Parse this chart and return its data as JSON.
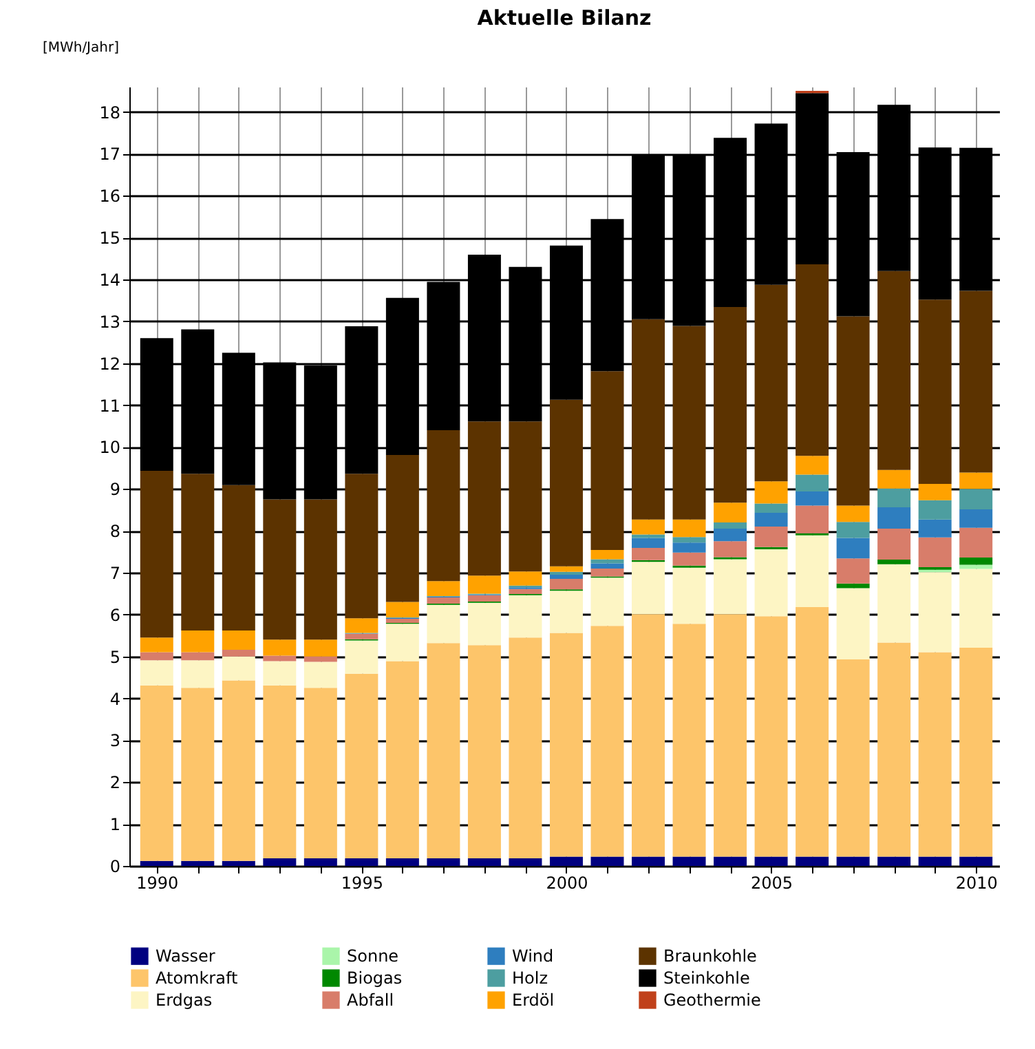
{
  "chart_data": {
    "type": "bar",
    "title": "Aktuelle Bilanz",
    "ylabel": "[MWh/Jahr]",
    "stacked": true,
    "grid": true,
    "legend": "bottom",
    "x": [
      1990,
      1991,
      1992,
      1993,
      1994,
      1995,
      1996,
      1997,
      1998,
      1999,
      2000,
      2001,
      2002,
      2003,
      2004,
      2005,
      2006,
      2007,
      2008,
      2009,
      2010
    ],
    "xlim": [
      1989.5,
      2010.4
    ],
    "xticks": [
      1990,
      {
        "value": 1991,
        "label": null
      },
      {
        "value": 1992,
        "label": null
      },
      {
        "value": 1993,
        "label": null
      },
      {
        "value": 1994,
        "label": null
      },
      1995,
      {
        "value": 1996,
        "label": null
      },
      {
        "value": 1997,
        "label": null
      },
      {
        "value": 1998,
        "label": null
      },
      {
        "value": 1999,
        "label": null
      },
      2000,
      {
        "value": 2001,
        "label": null
      },
      {
        "value": 2002,
        "label": null
      },
      {
        "value": 2003,
        "label": null
      },
      {
        "value": 2004,
        "label": null
      },
      2005,
      {
        "value": 2006,
        "label": null
      },
      {
        "value": 2007,
        "label": null
      },
      {
        "value": 2008,
        "label": null
      },
      {
        "value": 2009,
        "label": null
      },
      2010
    ],
    "ylim": [
      0,
      18.6
    ],
    "yticks": [
      0,
      1,
      2,
      3,
      4,
      5,
      6,
      7,
      8,
      9,
      10,
      11,
      12,
      13,
      14,
      15,
      16,
      17,
      18
    ],
    "series": [
      {
        "name": "Wasser",
        "color": "#000080",
        "values": [
          0.12,
          0.12,
          0.12,
          0.18,
          0.18,
          0.18,
          0.18,
          0.18,
          0.18,
          0.18,
          0.22,
          0.22,
          0.22,
          0.22,
          0.22,
          0.22,
          0.22,
          0.22,
          0.22,
          0.22,
          0.22
        ]
      },
      {
        "name": "Atomkraft",
        "color": "#fdc56a",
        "values": [
          4.19,
          4.13,
          4.31,
          4.13,
          4.07,
          4.41,
          4.71,
          5.14,
          5.09,
          5.27,
          5.34,
          5.51,
          5.79,
          5.56,
          5.79,
          5.74,
          5.96,
          4.71,
          5.11,
          4.88,
          4.99
        ]
      },
      {
        "name": "Erdgas",
        "color": "#fdf5c4",
        "values": [
          0.6,
          0.66,
          0.57,
          0.58,
          0.62,
          0.79,
          0.89,
          0.91,
          1.01,
          1.01,
          1.01,
          1.15,
          1.25,
          1.34,
          1.31,
          1.6,
          1.71,
          1.7,
          1.87,
          1.91,
          1.88
        ]
      },
      {
        "name": "Sonne",
        "color": "#aaf5aa",
        "values": [
          0,
          0,
          0,
          0,
          0,
          0,
          0,
          0,
          0,
          0,
          0,
          0,
          0,
          0,
          0,
          0,
          0,
          0,
          0,
          0.06,
          0.1
        ]
      },
      {
        "name": "Biogas",
        "color": "#008800",
        "values": [
          0,
          0,
          0,
          0,
          0,
          0.03,
          0.02,
          0.03,
          0.03,
          0.03,
          0.03,
          0.03,
          0.04,
          0.05,
          0.05,
          0.05,
          0.05,
          0.11,
          0.11,
          0.06,
          0.17
        ]
      },
      {
        "name": "Abfall",
        "color": "#d87d6a",
        "values": [
          0.19,
          0.19,
          0.16,
          0.13,
          0.13,
          0.13,
          0.1,
          0.15,
          0.15,
          0.12,
          0.25,
          0.19,
          0.29,
          0.31,
          0.38,
          0.49,
          0.66,
          0.6,
          0.74,
          0.71,
          0.71
        ]
      },
      {
        "name": "Wind",
        "color": "#2e7ebf",
        "values": [
          0,
          0,
          0,
          0,
          0,
          0.01,
          0.02,
          0.02,
          0.02,
          0.04,
          0.1,
          0.12,
          0.24,
          0.24,
          0.3,
          0.33,
          0.34,
          0.49,
          0.51,
          0.43,
          0.44
        ]
      },
      {
        "name": "Holz",
        "color": "#4d9ea0",
        "values": [
          0,
          0,
          0,
          0,
          0,
          0.01,
          0.01,
          0.01,
          0.02,
          0.04,
          0.07,
          0.1,
          0.08,
          0.13,
          0.15,
          0.22,
          0.4,
          0.38,
          0.45,
          0.46,
          0.49
        ]
      },
      {
        "name": "Erdöl",
        "color": "#ffa200",
        "values": [
          0.35,
          0.52,
          0.46,
          0.38,
          0.4,
          0.35,
          0.37,
          0.36,
          0.43,
          0.34,
          0.13,
          0.22,
          0.36,
          0.42,
          0.47,
          0.53,
          0.45,
          0.39,
          0.44,
          0.39,
          0.39
        ]
      },
      {
        "name": "Braunkohle",
        "color": "#5c3300",
        "values": [
          3.98,
          3.74,
          3.47,
          3.35,
          3.35,
          3.45,
          3.51,
          3.6,
          3.68,
          3.58,
          3.98,
          4.27,
          4.78,
          4.62,
          4.67,
          4.69,
          4.57,
          4.52,
          4.75,
          4.4,
          4.34
        ]
      },
      {
        "name": "Steinkohle",
        "color": "#000000",
        "values": [
          3.17,
          3.45,
          3.16,
          3.27,
          3.2,
          3.52,
          3.75,
          3.54,
          3.98,
          3.69,
          3.68,
          3.63,
          3.92,
          4.08,
          4.04,
          3.85,
          4.09,
          3.92,
          3.97,
          3.63,
          3.41
        ]
      },
      {
        "name": "Geothermie",
        "color": "#c0401a",
        "values": [
          0,
          0,
          0,
          0,
          0,
          0,
          0,
          0,
          0,
          0,
          0,
          0,
          0,
          0,
          0,
          0,
          0.05,
          0,
          0,
          0,
          0
        ]
      }
    ]
  }
}
